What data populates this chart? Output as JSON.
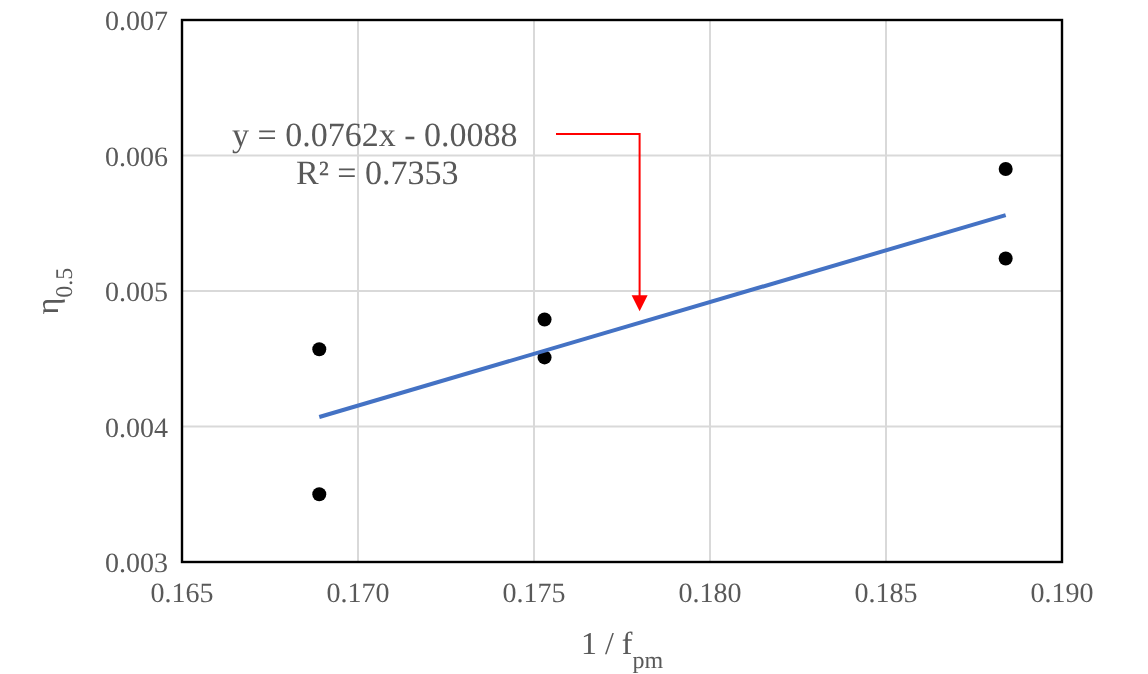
{
  "chart_data": {
    "type": "scatter",
    "xlabel": "1 / f$_{pm}$",
    "ylabel": "η$_{0.5}$",
    "xlim": [
      0.165,
      0.19
    ],
    "xticks": [
      {
        "value": 0.165,
        "label": "0.165"
      },
      {
        "value": 0.17,
        "label": "0.170"
      },
      {
        "value": 0.175,
        "label": "0.175"
      },
      {
        "value": 0.18,
        "label": "0.180"
      },
      {
        "value": 0.185,
        "label": "0.185"
      },
      {
        "value": 0.19,
        "label": "0.190"
      }
    ],
    "ylim": [
      0.003,
      0.007
    ],
    "yticks": [
      0.003,
      0.004,
      0.005,
      0.006,
      0.007
    ],
    "grid": true,
    "marker": "circle",
    "series": [
      {
        "color": "#000000",
        "x": [
          0.1689,
          0.1689,
          0.1753,
          0.1753,
          0.1884,
          0.1884
        ],
        "values": [
          0.00457,
          0.0035,
          0.00479,
          0.00451,
          0.0059,
          0.00524
        ]
      },
      {
        "type": "line",
        "color": "#4472c4",
        "x": [
          0.1689,
          0.1884
        ],
        "values": [
          0.00407,
          0.00556
        ],
        "line_style": "solid",
        "marker": "none"
      }
    ],
    "annotations": [
      {
        "text": "y = 0.0762x - 0.0088",
        "x": 0.178,
        "y": 0.00485
      },
      "R² = 0.7353"
    ]
  }
}
